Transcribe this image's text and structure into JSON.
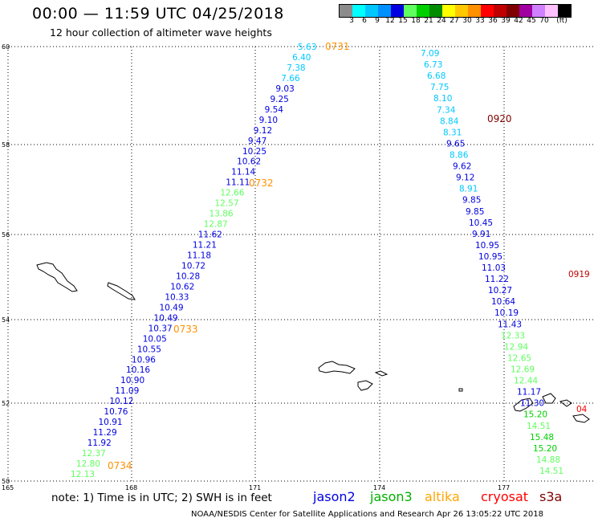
{
  "title": "00:00 — 11:59 UTC 04/25/2018",
  "subtitle": "12 hour collection of altimeter wave heights",
  "colorbar": {
    "colors": [
      "#8c8c8c",
      "#00ffff",
      "#00c8ff",
      "#0090ff",
      "#0000e0",
      "#60ff60",
      "#00d000",
      "#008c00",
      "#ffff00",
      "#ffc800",
      "#ff9000",
      "#ff0000",
      "#c00000",
      "#800000",
      "#a000a0",
      "#d080ff",
      "#ffc0ff",
      "#000000"
    ],
    "ticks": [
      "3",
      "6",
      "9",
      "12",
      "15",
      "18",
      "21",
      "24",
      "27",
      "30",
      "33",
      "36",
      "39",
      "42",
      "45",
      "70",
      "(ft)"
    ]
  },
  "axes": {
    "lat_labels": [
      "60",
      "58",
      "56",
      "54",
      "52",
      "50"
    ],
    "lon_labels": [
      "165",
      "168",
      "171",
      "174",
      "177"
    ]
  },
  "tracks": [
    {
      "name": "track-a",
      "points": [
        {
          "v": "5.63",
          "c": "#00c8ff"
        },
        {
          "v": "6.40",
          "c": "#00c8ff"
        },
        {
          "v": "7.38",
          "c": "#00c8ff"
        },
        {
          "v": "7.66",
          "c": "#00c8ff"
        },
        {
          "v": "9.03",
          "c": "#0000e0"
        },
        {
          "v": "9.25",
          "c": "#0000e0"
        },
        {
          "v": "9.54",
          "c": "#0000e0"
        },
        {
          "v": "9.10",
          "c": "#0000e0"
        },
        {
          "v": "9.12",
          "c": "#0000e0"
        },
        {
          "v": "9.47",
          "c": "#0000e0"
        },
        {
          "v": "10.25",
          "c": "#0000e0"
        },
        {
          "v": "10.62",
          "c": "#0000e0"
        },
        {
          "v": "11.14",
          "c": "#0000e0"
        },
        {
          "v": "11.11",
          "c": "#0000e0"
        },
        {
          "v": "12.66",
          "c": "#60ff60"
        },
        {
          "v": "12.57",
          "c": "#60ff60"
        },
        {
          "v": "13.86",
          "c": "#60ff60"
        },
        {
          "v": "12.87",
          "c": "#60ff60"
        },
        {
          "v": "11.62",
          "c": "#0000e0"
        },
        {
          "v": "11.21",
          "c": "#0000e0"
        },
        {
          "v": "11.18",
          "c": "#0000e0"
        },
        {
          "v": "10.72",
          "c": "#0000e0"
        },
        {
          "v": "10.28",
          "c": "#0000e0"
        },
        {
          "v": "10.62",
          "c": "#0000e0"
        },
        {
          "v": "10.33",
          "c": "#0000e0"
        },
        {
          "v": "10.49",
          "c": "#0000e0"
        },
        {
          "v": "10.49",
          "c": "#0000e0"
        },
        {
          "v": "10.37",
          "c": "#0000e0"
        },
        {
          "v": "10.05",
          "c": "#0000e0"
        },
        {
          "v": "10.55",
          "c": "#0000e0"
        },
        {
          "v": "10.96",
          "c": "#0000e0"
        },
        {
          "v": "10.16",
          "c": "#0000e0"
        },
        {
          "v": "10.90",
          "c": "#0000e0"
        },
        {
          "v": "11.09",
          "c": "#0000e0"
        },
        {
          "v": "10.12",
          "c": "#0000e0"
        },
        {
          "v": "10.76",
          "c": "#0000e0"
        },
        {
          "v": "10.91",
          "c": "#0000e0"
        },
        {
          "v": "11.29",
          "c": "#0000e0"
        },
        {
          "v": "11.92",
          "c": "#0000e0"
        },
        {
          "v": "12.37",
          "c": "#60ff60"
        },
        {
          "v": "12.80",
          "c": "#60ff60"
        },
        {
          "v": "12.13",
          "c": "#60ff60"
        }
      ],
      "time_labels": [
        {
          "t": "0731",
          "c": "#ff9000"
        },
        {
          "t": "0732",
          "c": "#ff9000"
        },
        {
          "t": "0733",
          "c": "#ff9000"
        },
        {
          "t": "0734",
          "c": "#ff9000"
        }
      ]
    },
    {
      "name": "track-b",
      "points": [
        {
          "v": "7.09",
          "c": "#00c8ff"
        },
        {
          "v": "6.73",
          "c": "#00c8ff"
        },
        {
          "v": "6.68",
          "c": "#00c8ff"
        },
        {
          "v": "7.75",
          "c": "#00c8ff"
        },
        {
          "v": "8.10",
          "c": "#00c8ff"
        },
        {
          "v": "7.34",
          "c": "#00c8ff"
        },
        {
          "v": "8.84",
          "c": "#00c8ff"
        },
        {
          "v": "8.31",
          "c": "#00c8ff"
        },
        {
          "v": "9.65",
          "c": "#0000e0"
        },
        {
          "v": "8.86",
          "c": "#00c8ff"
        },
        {
          "v": "9.62",
          "c": "#0000e0"
        },
        {
          "v": "9.12",
          "c": "#0000e0"
        },
        {
          "v": "8.91",
          "c": "#00c8ff"
        },
        {
          "v": "9.85",
          "c": "#0000e0"
        },
        {
          "v": "9.85",
          "c": "#0000e0"
        },
        {
          "v": "10.45",
          "c": "#0000e0"
        },
        {
          "v": "9.91",
          "c": "#0000e0"
        },
        {
          "v": "10.95",
          "c": "#0000e0"
        },
        {
          "v": "10.95",
          "c": "#0000e0"
        },
        {
          "v": "11.03",
          "c": "#0000e0"
        },
        {
          "v": "11.22",
          "c": "#0000e0"
        },
        {
          "v": "10.27",
          "c": "#0000e0"
        },
        {
          "v": "10.64",
          "c": "#0000e0"
        },
        {
          "v": "10.19",
          "c": "#0000e0"
        },
        {
          "v": "11.43",
          "c": "#0000e0"
        },
        {
          "v": "12.33",
          "c": "#60ff60"
        },
        {
          "v": "12.94",
          "c": "#60ff60"
        },
        {
          "v": "12.65",
          "c": "#60ff60"
        },
        {
          "v": "12.69",
          "c": "#60ff60"
        },
        {
          "v": "12.44",
          "c": "#60ff60"
        },
        {
          "v": "11.17",
          "c": "#0000e0"
        },
        {
          "v": "11.30",
          "c": "#0000e0"
        },
        {
          "v": "15.20",
          "c": "#00d000"
        },
        {
          "v": "14.51",
          "c": "#60ff60"
        },
        {
          "v": "15.48",
          "c": "#00d000"
        },
        {
          "v": "15.20",
          "c": "#00d000"
        },
        {
          "v": "14.88",
          "c": "#60ff60"
        },
        {
          "v": "14.51",
          "c": "#60ff60"
        }
      ],
      "time_labels": [
        {
          "t": "0920",
          "c": "#800000"
        }
      ]
    }
  ],
  "edge_labels": [
    {
      "t": "0919",
      "c": "#c00000"
    },
    {
      "t": "04",
      "c": "#ff0000"
    }
  ],
  "note": "note: 1) Time is in UTC; 2) SWH is in feet",
  "satellites": [
    {
      "name": "jason2",
      "color": "#0000e0"
    },
    {
      "name": "jason3",
      "color": "#00b000"
    },
    {
      "name": "altika",
      "color": "#ffa500"
    },
    {
      "name": "cryosat",
      "color": "#ff0000"
    },
    {
      "name": "s3a",
      "color": "#800000"
    }
  ],
  "footer": "NOAA/NESDIS Center for Satellite Applications and Research    Apr 26 13:05:22 UTC 2018"
}
